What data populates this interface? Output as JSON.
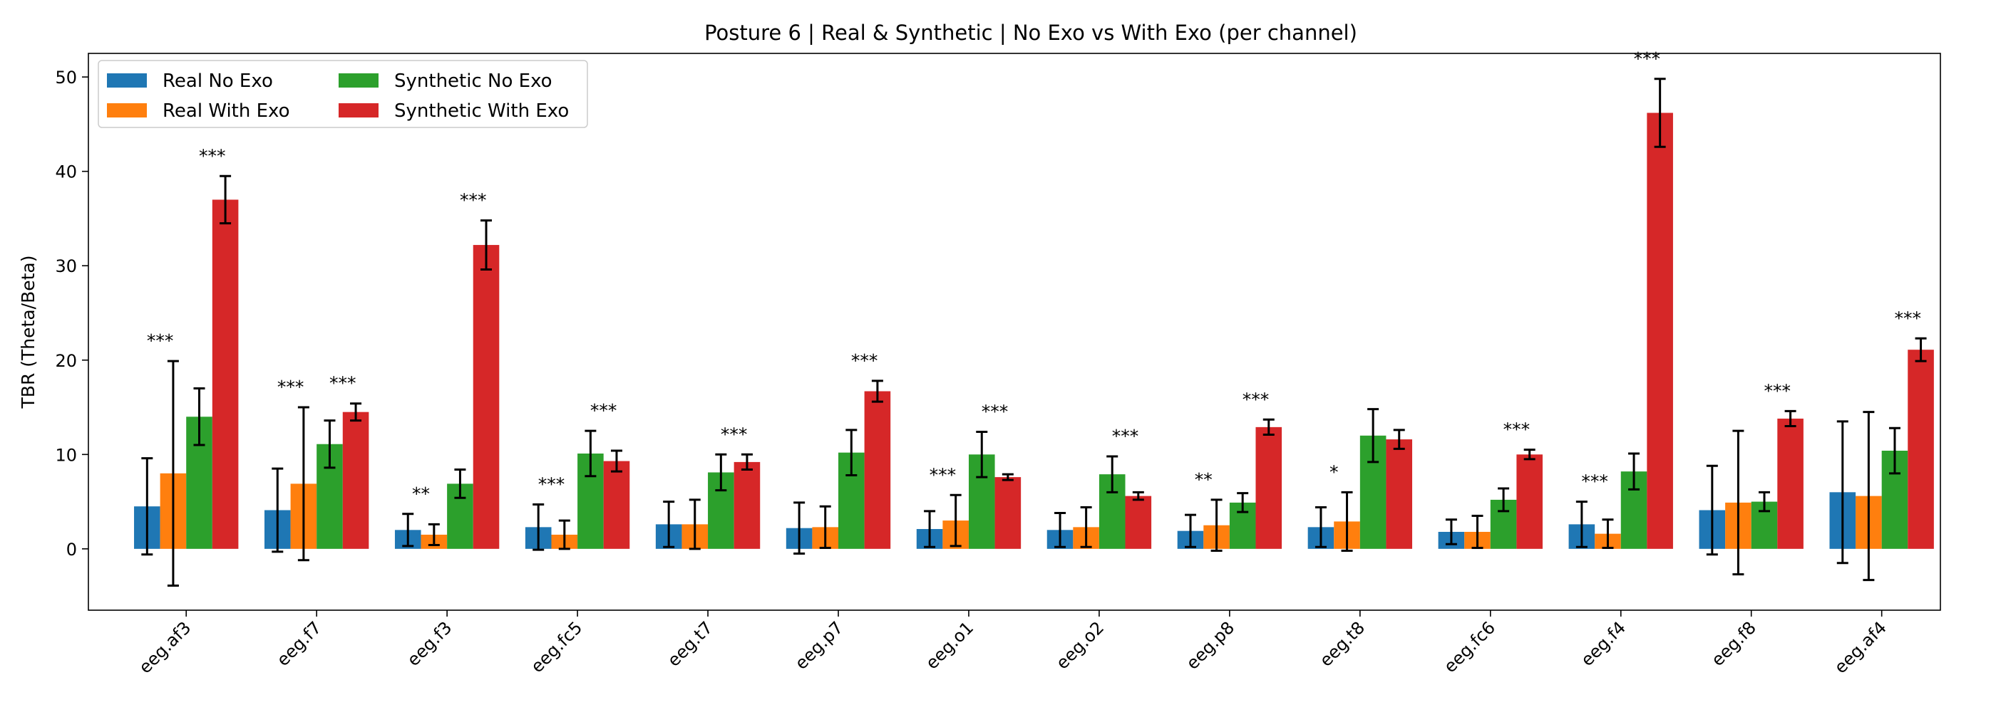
{
  "chart_data": {
    "type": "bar",
    "title": "Posture 6 | Real & Synthetic | No Exo vs With Exo (per channel)",
    "xlabel": "",
    "ylabel": "TBR (Theta/Beta)",
    "ylim": [
      -6.5,
      52.5
    ],
    "yticks": [
      0,
      10,
      20,
      30,
      40,
      50
    ],
    "grid": false,
    "legend_position": "top-left",
    "categories": [
      "eeg.af3",
      "eeg.f7",
      "eeg.f3",
      "eeg.fc5",
      "eeg.t7",
      "eeg.p7",
      "eeg.o1",
      "eeg.o2",
      "eeg.p8",
      "eeg.t8",
      "eeg.fc6",
      "eeg.f4",
      "eeg.f8",
      "eeg.af4"
    ],
    "series": [
      {
        "name": "Real No Exo",
        "color": "#1f77b4",
        "values": [
          4.5,
          4.1,
          2.0,
          2.3,
          2.6,
          2.2,
          2.1,
          2.0,
          1.9,
          2.3,
          1.8,
          2.6,
          4.1,
          6.0
        ],
        "errors": [
          5.1,
          4.4,
          1.7,
          2.4,
          2.4,
          2.7,
          1.9,
          1.8,
          1.7,
          2.1,
          1.3,
          2.4,
          4.7,
          7.5
        ]
      },
      {
        "name": "Real With Exo",
        "color": "#ff7f0e",
        "values": [
          8.0,
          6.9,
          1.5,
          1.5,
          2.6,
          2.3,
          3.0,
          2.3,
          2.5,
          2.9,
          1.8,
          1.6,
          4.9,
          5.6
        ],
        "errors": [
          11.9,
          8.1,
          1.1,
          1.5,
          2.6,
          2.2,
          2.7,
          2.1,
          2.7,
          3.1,
          1.7,
          1.5,
          7.6,
          8.9
        ]
      },
      {
        "name": "Synthetic No Exo",
        "color": "#2ca02c",
        "values": [
          14.0,
          11.1,
          6.9,
          10.1,
          8.1,
          10.2,
          10.0,
          7.9,
          4.9,
          12.0,
          5.2,
          8.2,
          5.0,
          10.4
        ],
        "errors": [
          3.0,
          2.5,
          1.5,
          2.4,
          1.9,
          2.4,
          2.4,
          1.9,
          1.0,
          2.8,
          1.2,
          1.9,
          1.0,
          2.4
        ]
      },
      {
        "name": "Synthetic With Exo",
        "color": "#d62728",
        "values": [
          37.0,
          14.5,
          32.2,
          9.3,
          9.2,
          16.7,
          7.6,
          5.6,
          12.9,
          11.6,
          10.0,
          46.2,
          13.8,
          21.1
        ],
        "errors": [
          2.5,
          0.9,
          2.6,
          1.1,
          0.8,
          1.1,
          0.3,
          0.4,
          0.8,
          1.0,
          0.5,
          3.6,
          0.8,
          1.2
        ]
      }
    ],
    "annotations": [
      {
        "category": 0,
        "series": 0,
        "text": "***"
      },
      {
        "category": 0,
        "series": 2,
        "text": "***"
      },
      {
        "category": 1,
        "series": 0,
        "text": "***"
      },
      {
        "category": 1,
        "series": 2,
        "text": "***"
      },
      {
        "category": 2,
        "series": 0,
        "text": "**"
      },
      {
        "category": 2,
        "series": 2,
        "text": "***"
      },
      {
        "category": 3,
        "series": 0,
        "text": "***"
      },
      {
        "category": 3,
        "series": 2,
        "text": "***"
      },
      {
        "category": 4,
        "series": 2,
        "text": "***"
      },
      {
        "category": 5,
        "series": 2,
        "text": "***"
      },
      {
        "category": 6,
        "series": 0,
        "text": "***"
      },
      {
        "category": 6,
        "series": 2,
        "text": "***"
      },
      {
        "category": 7,
        "series": 2,
        "text": "***"
      },
      {
        "category": 8,
        "series": 0,
        "text": "**"
      },
      {
        "category": 8,
        "series": 2,
        "text": "***"
      },
      {
        "category": 9,
        "series": 0,
        "text": "*"
      },
      {
        "category": 10,
        "series": 2,
        "text": "***"
      },
      {
        "category": 11,
        "series": 0,
        "text": "***"
      },
      {
        "category": 11,
        "series": 2,
        "text": "***"
      },
      {
        "category": 12,
        "series": 2,
        "text": "***"
      },
      {
        "category": 13,
        "series": 2,
        "text": "***"
      }
    ]
  }
}
